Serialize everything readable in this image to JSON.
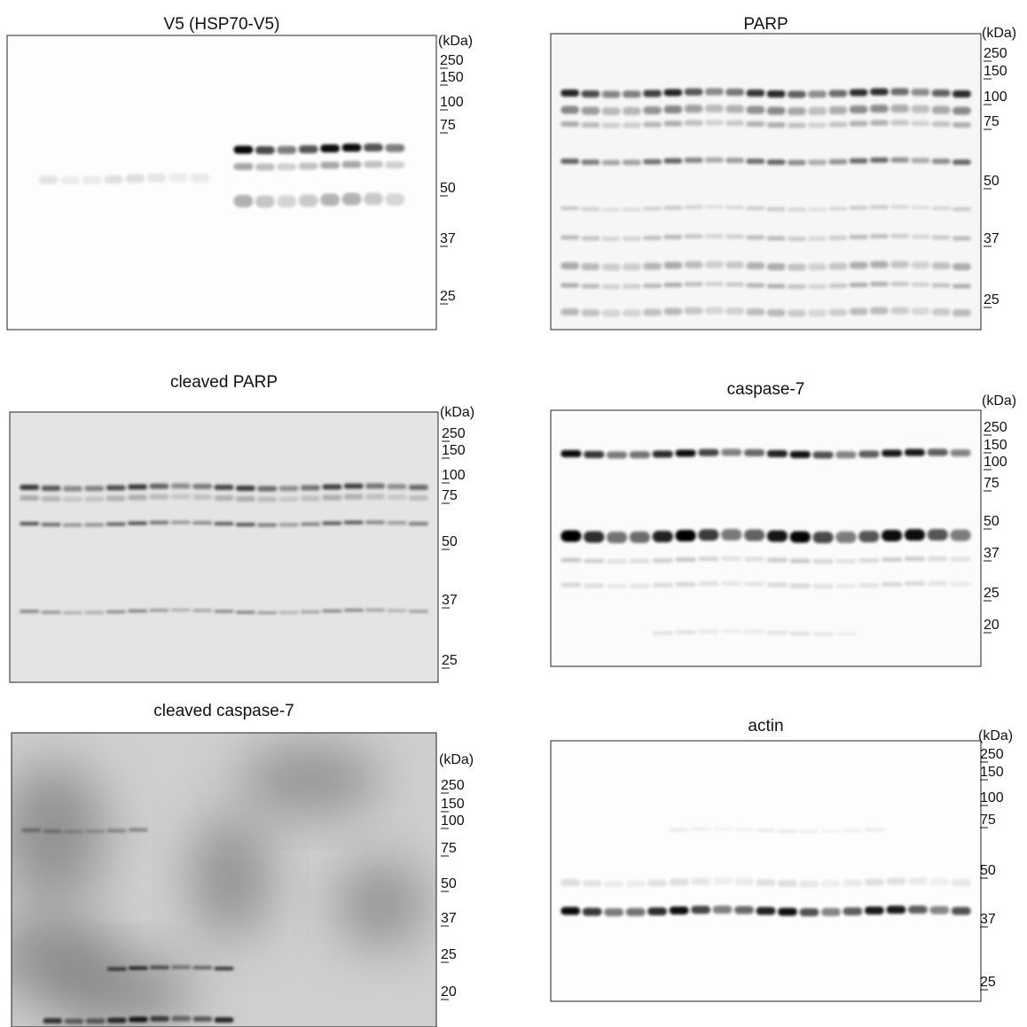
{
  "panels": [
    {
      "title": "V5 (HSP70-V5)",
      "unit": "(kDa)",
      "markers": [
        "250",
        "150",
        "100",
        "75",
        "50",
        "37",
        "25"
      ]
    },
    {
      "title": "PARP",
      "unit": "(kDa)",
      "markers": [
        "250",
        "150",
        "100",
        "75",
        "50",
        "37",
        "25"
      ]
    },
    {
      "title": "cleaved PARP",
      "unit": "(kDa)",
      "markers": [
        "250",
        "150",
        "100",
        "75",
        "50",
        "37",
        "25"
      ]
    },
    {
      "title": "caspase-7",
      "unit": "(kDa)",
      "markers": [
        "250",
        "150",
        "100",
        "75",
        "50",
        "37",
        "25",
        "20"
      ]
    },
    {
      "title": "cleaved caspase-7",
      "unit": "(kDa)",
      "markers": [
        "250",
        "150",
        "100",
        "75",
        "50",
        "37",
        "25",
        "20"
      ]
    },
    {
      "title": "actin",
      "unit": "(kDa)",
      "markers": [
        "250",
        "150",
        "100",
        "75",
        "50",
        "37",
        "25"
      ]
    }
  ]
}
